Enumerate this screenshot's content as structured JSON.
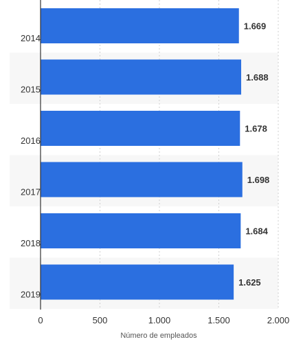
{
  "chart_data": {
    "type": "bar",
    "orientation": "horizontal",
    "categories": [
      "2014",
      "2015",
      "2016",
      "2017",
      "2018",
      "2019"
    ],
    "values": [
      1669,
      1688,
      1678,
      1698,
      1684,
      1625
    ],
    "value_labels": [
      "1.669",
      "1.688",
      "1.678",
      "1.698",
      "1.684",
      "1.625"
    ],
    "xlabel": "Número de empleados",
    "ylabel": "",
    "xlim": [
      0,
      2000
    ],
    "xticks": [
      0,
      500,
      1000,
      1500,
      2000
    ],
    "xtick_labels": [
      "0",
      "500",
      "1.000",
      "1.500",
      "2.000"
    ],
    "grid": "vertical dashed",
    "bar_color": "#2b6fe0",
    "band_color": "#f7f7f7"
  }
}
